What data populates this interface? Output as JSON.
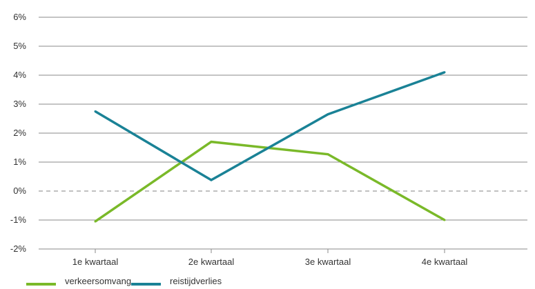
{
  "chart_data": {
    "type": "line",
    "title": "",
    "xlabel": "",
    "ylabel": "",
    "categories": [
      "1e kwartaal",
      "2e kwartaal",
      "3e kwartaal",
      "4e kwartaal"
    ],
    "y_ticks": [
      "-2%",
      "-1%",
      "0%",
      "1%",
      "2%",
      "3%",
      "4%",
      "5%",
      "6%"
    ],
    "ylim": [
      -2,
      6
    ],
    "zero_line": "dashed",
    "grid": true,
    "legend_position": "bottom-left",
    "series": [
      {
        "name": "verkeersomvang",
        "color": "#7ab929",
        "values": [
          -1.05,
          1.7,
          1.27,
          -1.0
        ]
      },
      {
        "name": "reistijdverlies",
        "color": "#1a8296",
        "values": [
          2.75,
          0.38,
          2.65,
          4.1
        ]
      }
    ]
  }
}
